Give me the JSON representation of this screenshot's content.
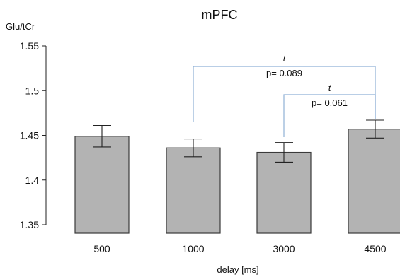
{
  "chart_data": {
    "type": "bar",
    "title": "mPFC",
    "ylabel": "Glu/tCr",
    "xlabel": "delay [ms]",
    "categories": [
      "500",
      "1000",
      "3000",
      "4500"
    ],
    "values": [
      1.449,
      1.436,
      1.431,
      1.457
    ],
    "errors": [
      0.012,
      0.01,
      0.011,
      0.01
    ],
    "ylim": [
      1.35,
      1.55
    ],
    "yticks": [
      "1.35",
      "1.4",
      "1.45",
      "1.5",
      "1.55"
    ],
    "bar_color": "#b3b3b3",
    "bracket_color": "#8fb0d6",
    "annotations": [
      {
        "from": "1000",
        "to": "4500",
        "test": "t",
        "label": "p= 0.089"
      },
      {
        "from": "3000",
        "to": "4500",
        "test": "t",
        "label": "p= 0.061"
      }
    ]
  }
}
